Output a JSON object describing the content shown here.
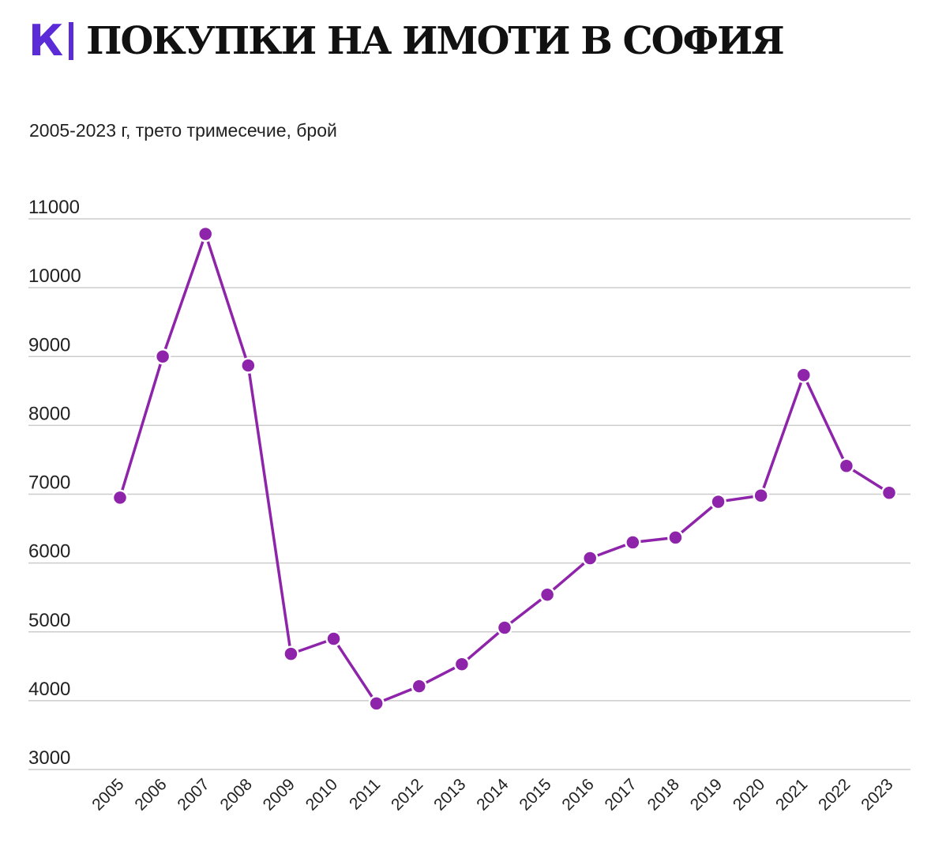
{
  "header": {
    "logo_letter": "К",
    "title": "ПОКУПКИ НА ИМОТИ В СОФИЯ",
    "subtitle": "2005-2023 г, трето тримесечие, брой"
  },
  "colors": {
    "accent": "#5a2bd6",
    "series": "#8e24aa",
    "grid": "#cccccc",
    "text": "#222222"
  },
  "chart_data": {
    "type": "line",
    "title": "ПОКУПКИ НА ИМОТИ В СОФИЯ",
    "subtitle": "2005-2023 г, трето тримесечие, брой",
    "xlabel": "",
    "ylabel": "",
    "ylim": [
      3000,
      11000
    ],
    "yticks": [
      3000,
      4000,
      5000,
      6000,
      7000,
      8000,
      9000,
      10000,
      11000
    ],
    "grid": true,
    "legend": "none",
    "categories": [
      "2005",
      "2006",
      "2007",
      "2008",
      "2009",
      "2010",
      "2011",
      "2012",
      "2013",
      "2014",
      "2015",
      "2016",
      "2017",
      "2018",
      "2019",
      "2020",
      "2021",
      "2022",
      "2023"
    ],
    "series": [
      {
        "values": [
          6950,
          9000,
          10780,
          8870,
          4680,
          4900,
          3960,
          4210,
          4530,
          5060,
          5540,
          6070,
          6300,
          6370,
          6890,
          6980,
          8730,
          7410,
          7020
        ]
      }
    ]
  }
}
